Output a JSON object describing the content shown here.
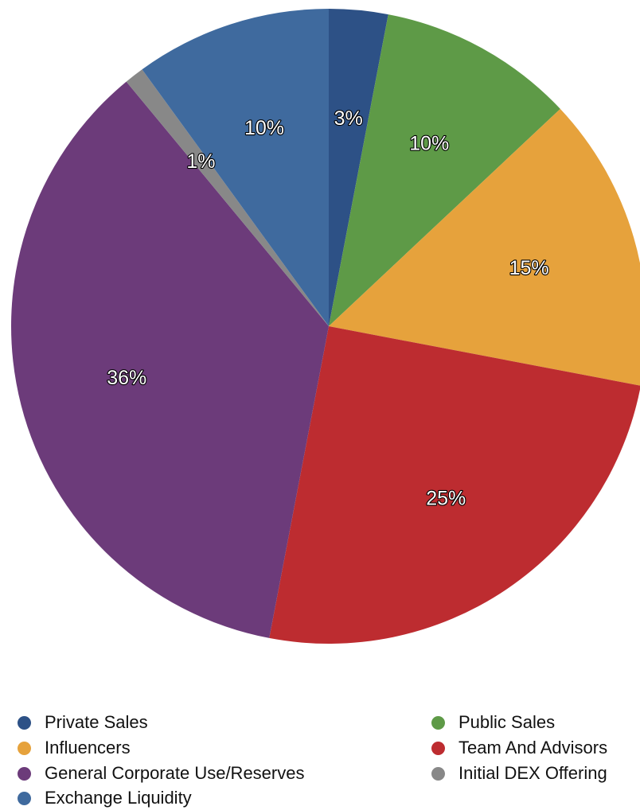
{
  "chart_data": {
    "type": "pie",
    "slices": [
      {
        "name": "Private Sales",
        "value": 3,
        "label": "3%",
        "color": "#2d5186"
      },
      {
        "name": "Public Sales",
        "value": 10,
        "label": "10%",
        "color": "#5e9a47"
      },
      {
        "name": "Influencers",
        "value": 15,
        "label": "15%",
        "color": "#e6a23c"
      },
      {
        "name": "Team And Advisors",
        "value": 25,
        "label": "25%",
        "color": "#bd2c30"
      },
      {
        "name": "General Corporate Use/Reserves",
        "value": 36,
        "label": "36%",
        "color": "#6c3b7a"
      },
      {
        "name": "Initial DEX Offering",
        "value": 1,
        "label": "1%",
        "color": "#888888"
      },
      {
        "name": "Exchange Liquidity",
        "value": 10,
        "label": "10%",
        "color": "#3f6a9e"
      }
    ],
    "start_angle": "12 o'clock",
    "direction": "clockwise",
    "legend_placement": "bottom"
  },
  "legend": {
    "left": [
      {
        "label": "Private Sales",
        "color": "#2d5186"
      },
      {
        "label": "Influencers",
        "color": "#e6a23c"
      },
      {
        "label": "General Corporate Use/Reserves",
        "color": "#6c3b7a"
      },
      {
        "label": "Exchange Liquidity",
        "color": "#3f6a9e"
      }
    ],
    "right": [
      {
        "label": "Public Sales",
        "color": "#5e9a47"
      },
      {
        "label": "Team And Advisors",
        "color": "#bd2c30"
      },
      {
        "label": "Initial DEX Offering",
        "color": "#888888"
      }
    ]
  }
}
